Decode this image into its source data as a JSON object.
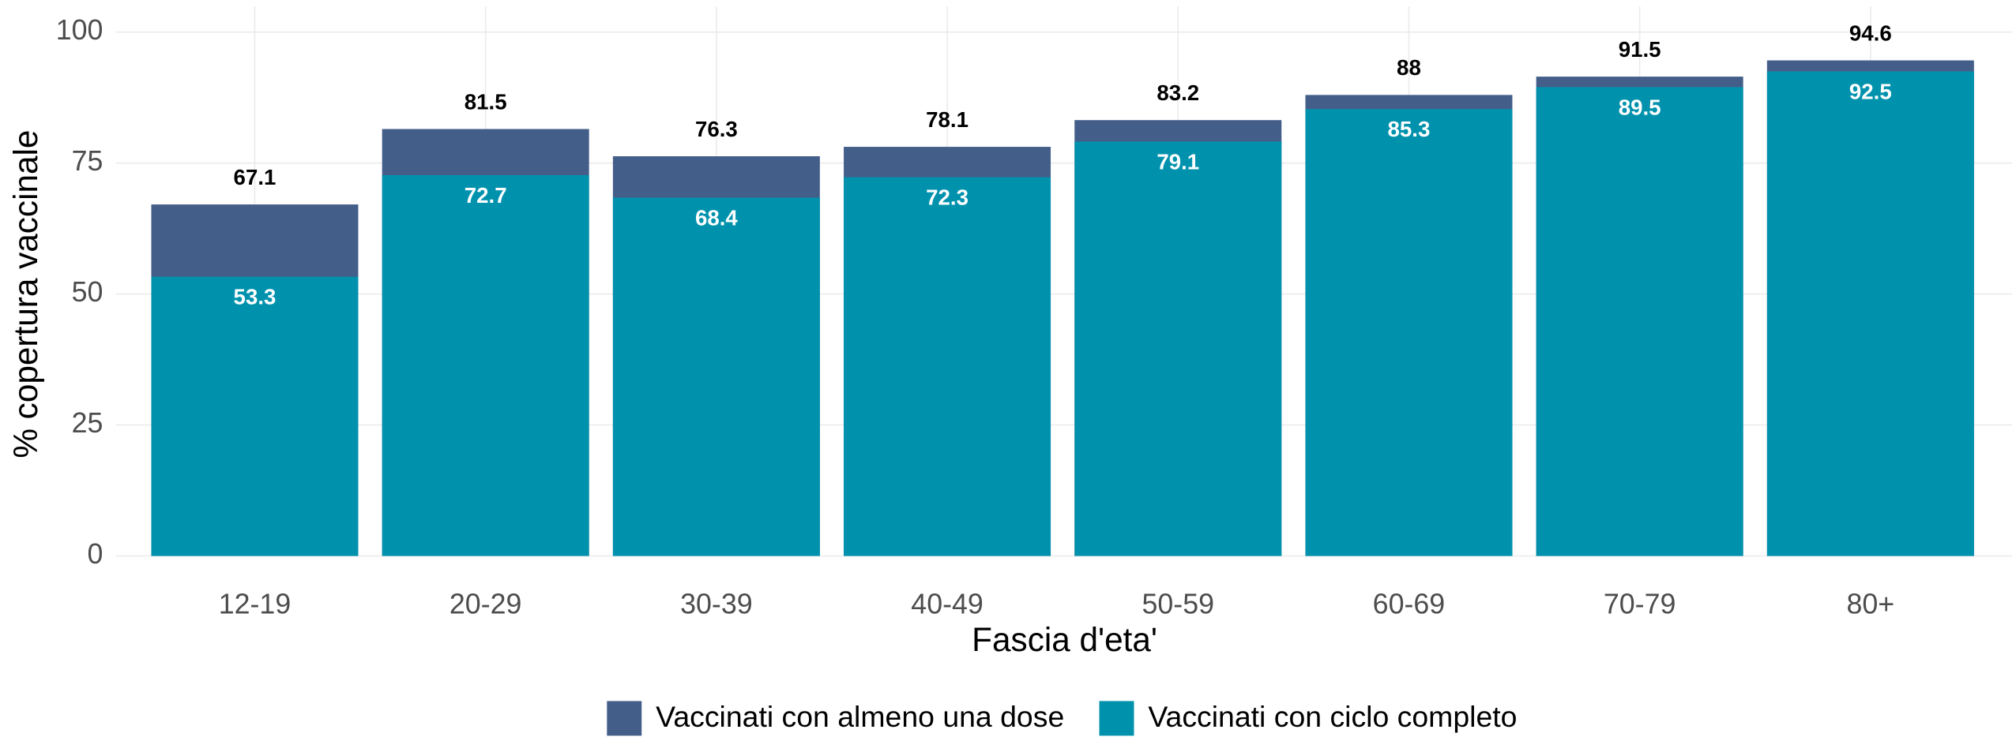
{
  "chart_data": {
    "type": "bar",
    "x_label": "Fascia d'eta'",
    "y_label": "% copertura vaccinale",
    "categories": [
      "12-19",
      "20-29",
      "30-39",
      "40-49",
      "50-59",
      "60-69",
      "70-79",
      "80+"
    ],
    "series": [
      {
        "name": "Vaccinati con almeno una dose",
        "color": "#445e8a",
        "values": [
          67.1,
          81.5,
          76.3,
          78.1,
          83.2,
          88,
          91.5,
          94.6
        ]
      },
      {
        "name": "Vaccinati con ciclo completo",
        "color": "#0092ad",
        "values": [
          53.3,
          72.7,
          68.4,
          72.3,
          79.1,
          85.3,
          89.5,
          92.5
        ]
      }
    ],
    "ylim": [
      0,
      100
    ],
    "yticks": [
      0,
      25,
      50,
      75,
      100
    ],
    "grid": true,
    "legend": "bottom"
  }
}
